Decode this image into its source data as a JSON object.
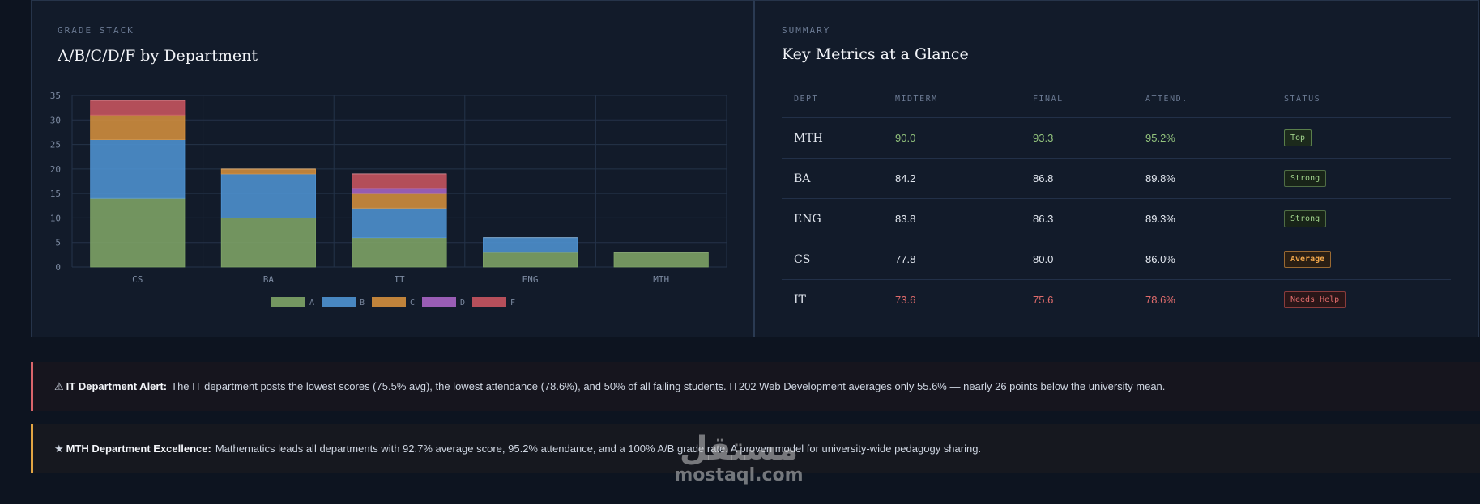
{
  "chart_panel": {
    "eyebrow": "GRADE STACK",
    "title": "A/B/C/D/F by Department"
  },
  "chart_data": {
    "type": "bar",
    "stacked": true,
    "categories": [
      "CS",
      "BA",
      "IT",
      "ENG",
      "MTH"
    ],
    "series": [
      {
        "name": "A",
        "color": "#7fa567",
        "values": [
          14,
          10,
          6,
          3,
          3
        ]
      },
      {
        "name": "B",
        "color": "#4f93d2",
        "values": [
          12,
          9,
          6,
          3,
          0
        ]
      },
      {
        "name": "C",
        "color": "#d48f3d",
        "values": [
          5,
          1,
          3,
          0,
          0
        ]
      },
      {
        "name": "D",
        "color": "#a865c4",
        "values": [
          0,
          0,
          1,
          0,
          0
        ]
      },
      {
        "name": "F",
        "color": "#c95560",
        "values": [
          3,
          0,
          3,
          0,
          0
        ]
      }
    ],
    "yticks": [
      "0",
      "5",
      "10",
      "15",
      "20",
      "25",
      "30",
      "35"
    ],
    "ylim": [
      0,
      35
    ],
    "grid": true,
    "legend": "bottom-center"
  },
  "summary": {
    "eyebrow": "SUMMARY",
    "title": "Key Metrics at a Glance",
    "headers": {
      "dept": "DEPT",
      "midterm": "MIDTERM",
      "final": "FINAL",
      "attend": "ATTEND.",
      "status": "STATUS"
    },
    "rows": [
      {
        "dept": "MTH",
        "midterm": "90.0",
        "final": "93.3",
        "attend": "95.2%",
        "status": "Top"
      },
      {
        "dept": "BA",
        "midterm": "84.2",
        "final": "86.8",
        "attend": "89.8%",
        "status": "Strong"
      },
      {
        "dept": "ENG",
        "midterm": "83.8",
        "final": "86.3",
        "attend": "89.3%",
        "status": "Strong"
      },
      {
        "dept": "CS",
        "midterm": "77.8",
        "final": "80.0",
        "attend": "86.0%",
        "status": "Average"
      },
      {
        "dept": "IT",
        "midterm": "73.6",
        "final": "75.6",
        "attend": "78.6%",
        "status": "Needs Help"
      }
    ]
  },
  "alerts": {
    "it": {
      "icon": "⚠",
      "title": "IT Department Alert:",
      "text": "The IT department posts the lowest scores (75.5% avg), the lowest attendance (78.6%), and 50% of all failing students. IT202 Web Development averages only 55.6% — nearly 26 points below the university mean."
    },
    "mth": {
      "icon": "★",
      "title": "MTH Department Excellence:",
      "text": "Mathematics leads all departments with 92.7% average score, 95.2% attendance, and a 100% A/B grade rate. A proven model for university-wide pedagogy sharing."
    }
  },
  "watermark": {
    "arabic": "مستقل",
    "latin": "mostaql.com"
  }
}
